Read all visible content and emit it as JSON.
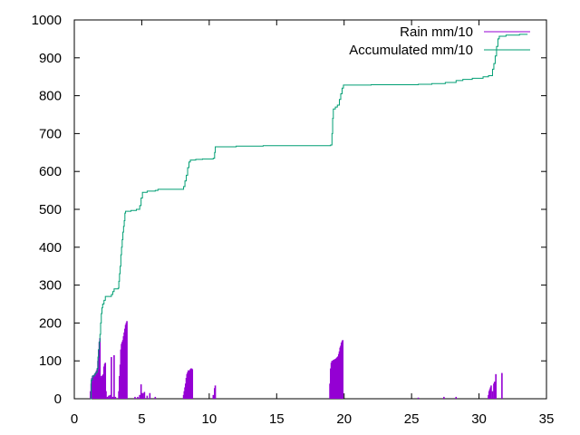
{
  "chart_data": {
    "type": "line",
    "title": "",
    "xlabel": "",
    "ylabel": "",
    "xlim": [
      0,
      35
    ],
    "ylim": [
      0,
      1000
    ],
    "x_ticks": [
      0,
      5,
      10,
      15,
      20,
      25,
      30,
      35
    ],
    "y_ticks": [
      0,
      100,
      200,
      300,
      400,
      500,
      600,
      700,
      800,
      900,
      1000
    ],
    "x_tick_labels": [
      "0",
      "5",
      "10",
      "15",
      "20",
      "25",
      "30",
      "35"
    ],
    "y_tick_labels": [
      "0",
      "100",
      "200",
      "300",
      "400",
      "500",
      "600",
      "700",
      "800",
      "900",
      "1000"
    ],
    "grid": false,
    "legend_position": "top-right",
    "series": [
      {
        "name": "Rain mm/10",
        "style": "impulses",
        "color": "#9400d3",
        "points": [
          [
            1.2,
            20
          ],
          [
            1.25,
            40
          ],
          [
            1.3,
            55
          ],
          [
            1.35,
            60
          ],
          [
            1.4,
            62
          ],
          [
            1.45,
            62
          ],
          [
            1.5,
            65
          ],
          [
            1.55,
            68
          ],
          [
            1.6,
            70
          ],
          [
            1.65,
            75
          ],
          [
            1.7,
            80
          ],
          [
            1.75,
            100
          ],
          [
            1.8,
            130
          ],
          [
            1.85,
            150
          ],
          [
            1.9,
            160
          ],
          [
            1.95,
            60
          ],
          [
            2.0,
            55
          ],
          [
            2.05,
            60
          ],
          [
            2.1,
            62
          ],
          [
            2.15,
            65
          ],
          [
            2.2,
            85
          ],
          [
            2.25,
            92
          ],
          [
            2.3,
            95
          ],
          [
            2.35,
            20
          ],
          [
            2.45,
            5
          ],
          [
            2.55,
            8
          ],
          [
            2.65,
            10
          ],
          [
            2.75,
            110
          ],
          [
            2.85,
            5
          ],
          [
            2.95,
            115
          ],
          [
            3.05,
            5
          ],
          [
            3.3,
            20
          ],
          [
            3.35,
            60
          ],
          [
            3.4,
            90
          ],
          [
            3.45,
            130
          ],
          [
            3.5,
            145
          ],
          [
            3.55,
            150
          ],
          [
            3.6,
            155
          ],
          [
            3.65,
            165
          ],
          [
            3.7,
            175
          ],
          [
            3.75,
            185
          ],
          [
            3.8,
            195
          ],
          [
            3.85,
            200
          ],
          [
            3.9,
            205
          ],
          [
            4.5,
            5
          ],
          [
            4.7,
            5
          ],
          [
            4.85,
            10
          ],
          [
            4.95,
            38
          ],
          [
            5.0,
            15
          ],
          [
            5.05,
            12
          ],
          [
            5.1,
            15
          ],
          [
            5.2,
            18
          ],
          [
            5.4,
            8
          ],
          [
            5.6,
            15
          ],
          [
            6.0,
            5
          ],
          [
            8.1,
            10
          ],
          [
            8.15,
            20
          ],
          [
            8.2,
            30
          ],
          [
            8.25,
            40
          ],
          [
            8.3,
            55
          ],
          [
            8.35,
            65
          ],
          [
            8.4,
            70
          ],
          [
            8.45,
            75
          ],
          [
            8.55,
            75
          ],
          [
            8.6,
            78
          ],
          [
            8.65,
            80
          ],
          [
            8.7,
            80
          ],
          [
            8.75,
            78
          ],
          [
            10.3,
            10
          ],
          [
            10.4,
            28
          ],
          [
            10.45,
            35
          ],
          [
            18.95,
            40
          ],
          [
            19.0,
            80
          ],
          [
            19.05,
            95
          ],
          [
            19.1,
            100
          ],
          [
            19.15,
            100
          ],
          [
            19.2,
            102
          ],
          [
            19.25,
            103
          ],
          [
            19.3,
            104
          ],
          [
            19.35,
            105
          ],
          [
            19.4,
            106
          ],
          [
            19.45,
            108
          ],
          [
            19.5,
            110
          ],
          [
            19.55,
            112
          ],
          [
            19.6,
            118
          ],
          [
            19.65,
            125
          ],
          [
            19.7,
            135
          ],
          [
            19.75,
            140
          ],
          [
            19.8,
            148
          ],
          [
            19.85,
            152
          ],
          [
            19.9,
            155
          ],
          [
            25.5,
            3
          ],
          [
            27.4,
            5
          ],
          [
            28.3,
            5
          ],
          [
            30.7,
            10
          ],
          [
            30.75,
            20
          ],
          [
            30.8,
            25
          ],
          [
            30.85,
            30
          ],
          [
            30.9,
            35
          ],
          [
            31.0,
            20
          ],
          [
            31.1,
            40
          ],
          [
            31.15,
            45
          ],
          [
            31.25,
            65
          ],
          [
            31.7,
            68
          ]
        ]
      },
      {
        "name": "Accumulated mm/10",
        "style": "steps",
        "color": "#009e73",
        "points": [
          [
            1.2,
            0
          ],
          [
            1.25,
            50
          ],
          [
            1.35,
            60
          ],
          [
            1.5,
            65
          ],
          [
            1.6,
            70
          ],
          [
            1.7,
            80
          ],
          [
            1.75,
            110
          ],
          [
            1.8,
            130
          ],
          [
            1.85,
            150
          ],
          [
            1.9,
            170
          ],
          [
            1.95,
            200
          ],
          [
            2.0,
            225
          ],
          [
            2.05,
            240
          ],
          [
            2.1,
            250
          ],
          [
            2.2,
            260
          ],
          [
            2.3,
            270
          ],
          [
            2.75,
            275
          ],
          [
            2.85,
            283
          ],
          [
            2.95,
            290
          ],
          [
            3.25,
            292
          ],
          [
            3.3,
            310
          ],
          [
            3.35,
            330
          ],
          [
            3.4,
            350
          ],
          [
            3.45,
            380
          ],
          [
            3.5,
            400
          ],
          [
            3.55,
            420
          ],
          [
            3.6,
            440
          ],
          [
            3.65,
            455
          ],
          [
            3.7,
            470
          ],
          [
            3.75,
            490
          ],
          [
            3.8,
            495
          ],
          [
            4.2,
            497
          ],
          [
            4.6,
            500
          ],
          [
            4.85,
            510
          ],
          [
            4.95,
            530
          ],
          [
            5.05,
            545
          ],
          [
            5.4,
            548
          ],
          [
            6.0,
            550
          ],
          [
            6.2,
            553
          ],
          [
            8.1,
            560
          ],
          [
            8.2,
            575
          ],
          [
            8.3,
            590
          ],
          [
            8.4,
            610
          ],
          [
            8.5,
            625
          ],
          [
            8.6,
            630
          ],
          [
            9.0,
            632
          ],
          [
            9.5,
            633
          ],
          [
            10.3,
            635
          ],
          [
            10.4,
            650
          ],
          [
            10.45,
            665
          ],
          [
            12.0,
            667
          ],
          [
            14.0,
            668
          ],
          [
            19.0,
            670
          ],
          [
            19.1,
            700
          ],
          [
            19.15,
            740
          ],
          [
            19.2,
            765
          ],
          [
            19.35,
            770
          ],
          [
            19.5,
            775
          ],
          [
            19.65,
            790
          ],
          [
            19.75,
            805
          ],
          [
            19.85,
            820
          ],
          [
            19.95,
            828
          ],
          [
            22.0,
            829
          ],
          [
            25.5,
            830
          ],
          [
            26.5,
            832
          ],
          [
            27.5,
            835
          ],
          [
            28.3,
            840
          ],
          [
            28.8,
            843
          ],
          [
            29.5,
            846
          ],
          [
            30.3,
            850
          ],
          [
            30.7,
            853
          ],
          [
            31.0,
            870
          ],
          [
            31.1,
            885
          ],
          [
            31.2,
            905
          ],
          [
            31.3,
            930
          ],
          [
            31.4,
            950
          ],
          [
            31.5,
            957
          ],
          [
            32.0,
            960
          ],
          [
            33.0,
            962
          ],
          [
            33.6,
            962
          ]
        ]
      }
    ]
  }
}
